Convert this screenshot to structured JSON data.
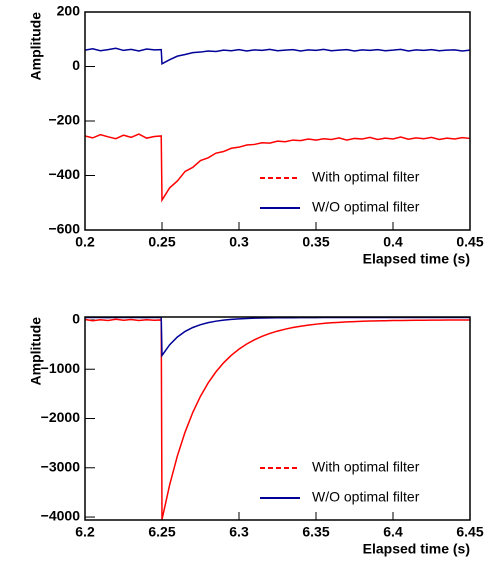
{
  "chart_data": [
    {
      "type": "line",
      "y_label": "Amplitude",
      "x_label": "Elapsed time (s)",
      "x": [
        0.2,
        0.205,
        0.21,
        0.215,
        0.22,
        0.225,
        0.23,
        0.235,
        0.24,
        0.245,
        0.2495,
        0.25,
        0.255,
        0.26,
        0.265,
        0.27,
        0.275,
        0.28,
        0.285,
        0.29,
        0.295,
        0.3,
        0.305,
        0.31,
        0.315,
        0.32,
        0.325,
        0.33,
        0.335,
        0.34,
        0.345,
        0.35,
        0.355,
        0.36,
        0.365,
        0.37,
        0.375,
        0.38,
        0.385,
        0.39,
        0.395,
        0.4,
        0.405,
        0.41,
        0.415,
        0.42,
        0.425,
        0.43,
        0.435,
        0.44,
        0.445,
        0.45
      ],
      "series": [
        {
          "name": "With optimal filter",
          "color": "#ff0000",
          "legend_style": "dashed",
          "values": [
            -255,
            -262,
            -250,
            -258,
            -265,
            -252,
            -260,
            -248,
            -263,
            -257,
            -255,
            -490,
            -445,
            -420,
            -385,
            -370,
            -345,
            -335,
            -318,
            -312,
            -300,
            -296,
            -288,
            -286,
            -280,
            -281,
            -274,
            -276,
            -270,
            -272,
            -266,
            -270,
            -265,
            -268,
            -262,
            -270,
            -264,
            -266,
            -260,
            -268,
            -263,
            -266,
            -259,
            -267,
            -262,
            -265,
            -260,
            -268,
            -263,
            -266,
            -261,
            -264
          ]
        },
        {
          "name": "W/O optimal filter",
          "color": "#000099",
          "legend_style": "solid",
          "values": [
            60,
            65,
            58,
            62,
            67,
            59,
            63,
            57,
            64,
            61,
            62,
            10,
            25,
            38,
            44,
            51,
            53,
            57,
            55,
            60,
            58,
            62,
            57,
            61,
            59,
            63,
            58,
            60,
            62,
            57,
            61,
            59,
            63,
            58,
            60,
            62,
            57,
            61,
            59,
            62,
            58,
            60,
            63,
            57,
            61,
            59,
            62,
            58,
            60,
            61,
            57,
            60
          ]
        }
      ],
      "xlim": [
        0.2,
        0.45
      ],
      "xticks": [
        0.2,
        0.25,
        0.3,
        0.35,
        0.4,
        0.45
      ],
      "ylim": [
        -600,
        200
      ],
      "yticks": [
        {
          "value": -600,
          "label": "−600"
        },
        {
          "value": -400,
          "label": "−400"
        },
        {
          "value": -200,
          "label": "−200"
        },
        0,
        200
      ],
      "legend": "lower right"
    },
    {
      "type": "line",
      "y_label": "Amplitude",
      "x_label": "Elapsed time (s)",
      "x": [
        6.2,
        6.205,
        6.21,
        6.215,
        6.22,
        6.225,
        6.23,
        6.235,
        6.24,
        6.245,
        6.2495,
        6.25,
        6.255,
        6.26,
        6.265,
        6.27,
        6.275,
        6.28,
        6.285,
        6.29,
        6.295,
        6.3,
        6.305,
        6.31,
        6.315,
        6.32,
        6.325,
        6.33,
        6.335,
        6.34,
        6.345,
        6.35,
        6.355,
        6.36,
        6.365,
        6.37,
        6.375,
        6.38,
        6.385,
        6.39,
        6.395,
        6.4,
        6.405,
        6.41,
        6.415,
        6.42,
        6.425,
        6.43,
        6.435,
        6.44,
        6.445,
        6.45
      ],
      "series": [
        {
          "name": "With optimal filter",
          "color": "#ff0000",
          "legend_style": "dashed",
          "values": [
            10,
            -15,
            5,
            -10,
            15,
            -5,
            8,
            -12,
            3,
            -6,
            0,
            -4050,
            -3342,
            -2757,
            -2275,
            -1876,
            -1548,
            -1277,
            -1054,
            -870,
            -717,
            -592,
            -488,
            -403,
            -332,
            -274,
            -226,
            -187,
            -154,
            -127,
            -105,
            -86,
            -70,
            -58,
            -48,
            -40,
            -33,
            -27,
            -22,
            -18,
            -15,
            -12,
            -10,
            -8,
            -6,
            -5,
            -4,
            -3,
            -2,
            -2,
            -1,
            -1
          ]
        },
        {
          "name": "W/O optimal filter",
          "color": "#000099",
          "legend_style": "solid",
          "values": [
            48,
            52,
            50,
            47,
            53,
            49,
            51,
            50,
            48,
            52,
            50,
            -720,
            -502,
            -345,
            -233,
            -153,
            -96,
            -54,
            -25,
            -3,
            11,
            22,
            30,
            36,
            40,
            42,
            44,
            45,
            46,
            47,
            48,
            48,
            49,
            49,
            50,
            50,
            50,
            51,
            50,
            50,
            51,
            50,
            50,
            51,
            50,
            50,
            51,
            50,
            50,
            51,
            50,
            50
          ]
        }
      ],
      "xlim": [
        6.2,
        6.45
      ],
      "xticks": [
        6.2,
        6.25,
        6.3,
        6.35,
        6.4,
        6.45
      ],
      "ylim": [
        -4060,
        60
      ],
      "yticks": [
        {
          "value": -4000,
          "label": "−4000"
        },
        {
          "value": -3000,
          "label": "−3000"
        },
        {
          "value": -2000,
          "label": "−2000"
        },
        {
          "value": -1000,
          "label": "−1000"
        },
        0
      ],
      "legend": "lower right"
    }
  ]
}
